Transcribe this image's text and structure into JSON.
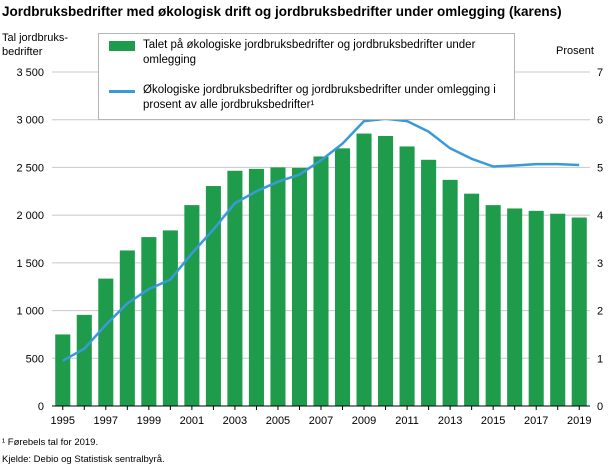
{
  "title": "Jordbruksbedrifter med økologisk drift og jordbruksbedrifter under omlegging (karens)",
  "footnote": "¹ Førebels tal for 2019.",
  "source": "Kjelde: Debio og Statistisk sentralbyrå.",
  "colors": {
    "bar": "#1e9c4b",
    "line": "#3a9ad9",
    "grid": "#c8c8c8",
    "axis": "#000000"
  },
  "chart_data": {
    "type": "bar+line",
    "title": "Jordbruksbedrifter med økologisk drift og jordbruksbedrifter under omlegging (karens)",
    "ylabel_left": "Tal jordbruks-\nbedrifter",
    "ylabel_right": "Prosent",
    "ylim_left": [
      0,
      3500
    ],
    "ylim_right": [
      0,
      7
    ],
    "yticks_left": [
      0,
      500,
      1000,
      1500,
      2000,
      2500,
      3000,
      3500
    ],
    "yticks_left_labels": [
      "0",
      "500",
      "1 000",
      "1 500",
      "2 000",
      "2 500",
      "3 000",
      "3 500"
    ],
    "yticks_right": [
      0,
      1,
      2,
      3,
      4,
      5,
      6,
      7
    ],
    "categories": [
      1995,
      1996,
      1997,
      1998,
      1999,
      2000,
      2001,
      2002,
      2003,
      2004,
      2005,
      2006,
      2007,
      2008,
      2009,
      2010,
      2011,
      2012,
      2013,
      2014,
      2015,
      2016,
      2017,
      2018,
      2019
    ],
    "xtick_labels": [
      "1995",
      "1997",
      "1999",
      "2001",
      "2003",
      "2005",
      "2007",
      "2009",
      "2011",
      "2013",
      "2015",
      "2017",
      "2019"
    ],
    "grid": true,
    "legend_position": "top-center",
    "series": [
      {
        "name": "Talet på økologiske jordbruksbedrifter og jordbruksbedrifter under omlegging",
        "type": "bar",
        "axis": "left",
        "values": [
          750,
          955,
          1335,
          1630,
          1770,
          1840,
          2105,
          2305,
          2465,
          2485,
          2500,
          2495,
          2615,
          2700,
          2855,
          2830,
          2720,
          2580,
          2370,
          2225,
          2105,
          2070,
          2045,
          2015,
          1975
        ]
      },
      {
        "name": "Økologiske jordbruksbedrifter og jordbruksbedrifter under omlegging i prosent av alle jordbruksbedrifter¹",
        "type": "line",
        "axis": "right",
        "values": [
          0.95,
          1.2,
          1.7,
          2.15,
          2.45,
          2.65,
          3.2,
          3.7,
          4.25,
          4.5,
          4.7,
          4.85,
          5.15,
          5.5,
          5.97,
          6.02,
          5.97,
          5.75,
          5.4,
          5.18,
          5.02,
          5.04,
          5.07,
          5.07,
          5.05
        ]
      }
    ]
  }
}
